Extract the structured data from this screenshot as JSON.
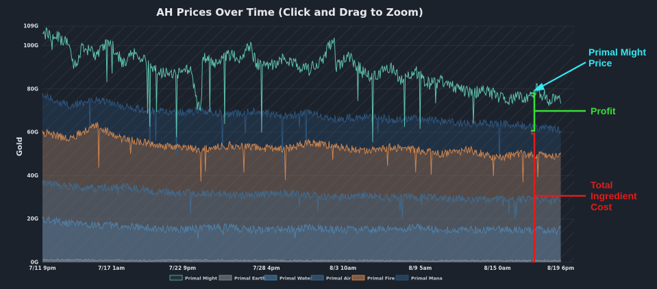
{
  "chart_data": {
    "type": "area",
    "title": "AH Prices Over Time (Click and Drag to Zoom)",
    "xlabel": "",
    "ylabel": "Gold",
    "ylim": [
      0,
      109
    ],
    "yticks": [
      {
        "value": 0,
        "label": "0G"
      },
      {
        "value": 20,
        "label": "20G"
      },
      {
        "value": 40,
        "label": "40G"
      },
      {
        "value": 60,
        "label": "60G"
      },
      {
        "value": 80,
        "label": "80G"
      },
      {
        "value": 100,
        "label": "100G"
      },
      {
        "value": 109,
        "label": "109G"
      }
    ],
    "xlim": [
      0,
      39.87
    ],
    "xticks": [
      {
        "value": 0,
        "label": "7/11 9pm"
      },
      {
        "value": 5.17,
        "label": "7/17 1am"
      },
      {
        "value": 10.5,
        "label": "7/22 9pm"
      },
      {
        "value": 16.8,
        "label": "7/28 4pm"
      },
      {
        "value": 22.54,
        "label": "8/3 10am"
      },
      {
        "value": 28.33,
        "label": "8/9 5am"
      },
      {
        "value": 34.12,
        "label": "8/15 0am"
      },
      {
        "value": 38.87,
        "label": "8/19 6pm"
      }
    ],
    "grid": true,
    "legend_position": "bottom",
    "series": [
      {
        "name": "Primal Might",
        "color": "#5fc4b0",
        "fill": false,
        "x": [
          0,
          1,
          2,
          2.4,
          3,
          4,
          5,
          6,
          7,
          8,
          9,
          10,
          11,
          11.9,
          12,
          13,
          14,
          15,
          15.5,
          16,
          17,
          18,
          19,
          20,
          21,
          21.9,
          22,
          23,
          24,
          25,
          26,
          27,
          28,
          29,
          30,
          31,
          32,
          33,
          34,
          35,
          35.7,
          36,
          37,
          38,
          38.87
        ],
        "y": [
          106,
          104,
          101,
          90,
          100,
          95,
          102,
          92,
          97,
          90,
          88,
          86,
          90,
          70,
          95,
          92,
          96,
          93,
          101,
          92,
          90,
          94,
          91,
          89,
          94,
          104,
          90,
          95,
          88,
          86,
          90,
          84,
          88,
          82,
          84,
          80,
          78,
          79,
          77,
          75,
          78,
          74,
          80,
          75,
          76
        ]
      },
      {
        "name": "Primal Earth",
        "color": "#8a8e94",
        "fill": true,
        "x": [
          0,
          4,
          8,
          12,
          16,
          20,
          24,
          28,
          32,
          36,
          38.87
        ],
        "y": [
          1.2,
          1.0,
          0.8,
          1.0,
          0.9,
          0.8,
          0.8,
          0.7,
          0.8,
          0.8,
          0.7
        ]
      },
      {
        "name": "Primal Water",
        "color": "#4f83ad",
        "fill": true,
        "x": [
          0,
          2,
          4,
          6,
          8,
          10,
          12,
          14,
          16,
          18,
          20,
          22,
          24,
          26,
          28,
          30,
          32,
          34,
          36,
          38,
          38.87
        ],
        "y": [
          20,
          18,
          17,
          17,
          16,
          15,
          16,
          16,
          15,
          15,
          16,
          15,
          15,
          15,
          16,
          15,
          15,
          15,
          15,
          15,
          15
        ]
      },
      {
        "name": "Primal Air",
        "color": "#3f6e93",
        "fill": true,
        "x": [
          0,
          2,
          4,
          6,
          8,
          10,
          12,
          14,
          16,
          18,
          20,
          22,
          24,
          26,
          28,
          30,
          32,
          34,
          36,
          38,
          38.87
        ],
        "y": [
          37,
          35,
          34,
          35,
          33,
          32,
          32,
          31,
          31,
          32,
          31,
          30,
          31,
          30,
          30,
          30,
          29,
          29,
          29,
          29,
          29
        ]
      },
      {
        "name": "Primal Fire",
        "color": "#d98a4e",
        "fill": true,
        "x": [
          0,
          2,
          4,
          6,
          8,
          10,
          12,
          14,
          16,
          18,
          20,
          22,
          24,
          26,
          28,
          30,
          32,
          34,
          36,
          38,
          38.87
        ],
        "y": [
          60,
          57,
          63,
          57,
          55,
          53,
          52,
          54,
          53,
          52,
          55,
          54,
          51,
          53,
          52,
          50,
          52,
          48,
          50,
          49,
          49
        ]
      },
      {
        "name": "Primal Mana",
        "color": "#2e5a84",
        "fill": true,
        "x": [
          0,
          2,
          4,
          6,
          8,
          10,
          12,
          14,
          16,
          18,
          20,
          22,
          24,
          26,
          28,
          30,
          32,
          34,
          36,
          38,
          38.87
        ],
        "y": [
          77,
          72,
          75,
          72,
          70,
          69,
          70,
          68,
          70,
          67,
          69,
          66,
          67,
          66,
          66,
          65,
          64,
          64,
          63,
          62,
          61
        ]
      }
    ],
    "annotations": [
      {
        "text": [
          "Primal Might",
          "Price"
        ],
        "color": "#33e8f2"
      },
      {
        "text": [
          "Profit"
        ],
        "color": "#35e035"
      },
      {
        "text": [
          "Total",
          "Ingredient",
          "Cost"
        ],
        "color": "#e41b1b"
      }
    ]
  }
}
